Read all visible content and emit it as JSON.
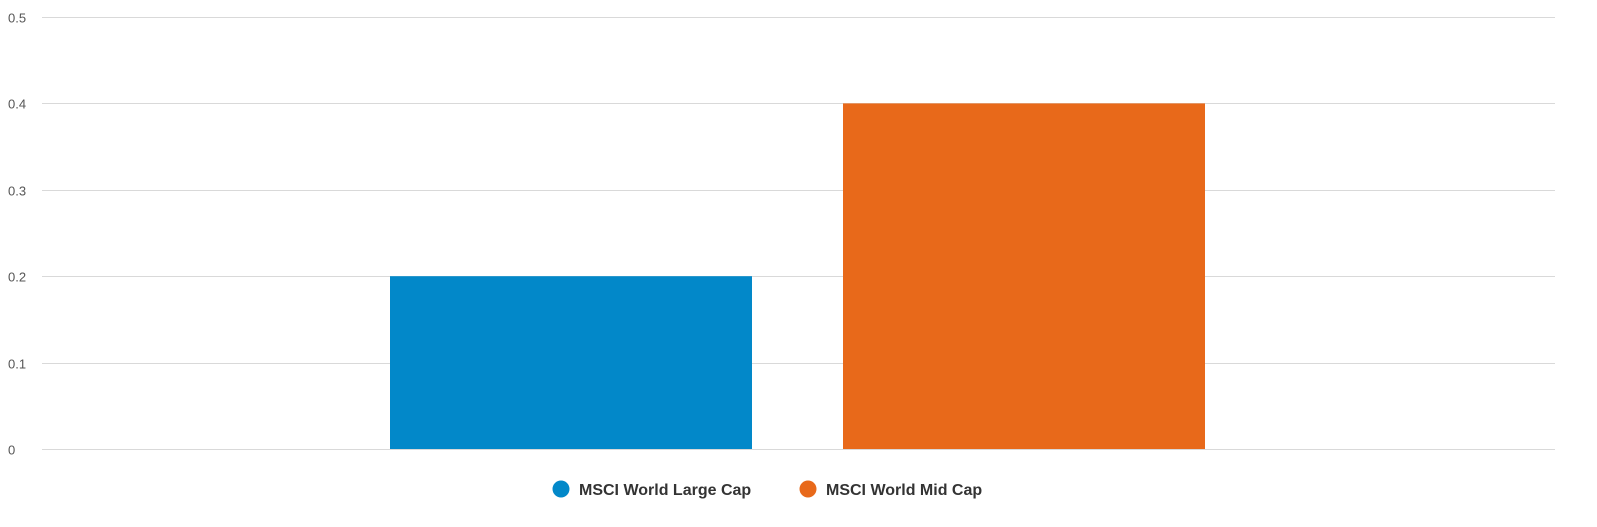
{
  "chart_data": {
    "type": "bar",
    "title": "",
    "xlabel": "",
    "ylabel": "",
    "ylim": [
      0,
      0.5
    ],
    "yticks": [
      0,
      0.1,
      0.2,
      0.3,
      0.4,
      0.5
    ],
    "ytick_labels": [
      "0",
      "0.1",
      "0.2",
      "0.3",
      "0.4",
      "0.5"
    ],
    "grid": true,
    "legend_position": "bottom-center",
    "series": [
      {
        "name": "MSCI World Large Cap",
        "values": [
          0.2
        ],
        "color": "#0288C9"
      },
      {
        "name": "MSCI World Mid Cap",
        "values": [
          0.4
        ],
        "color": "#E8691A"
      }
    ]
  }
}
